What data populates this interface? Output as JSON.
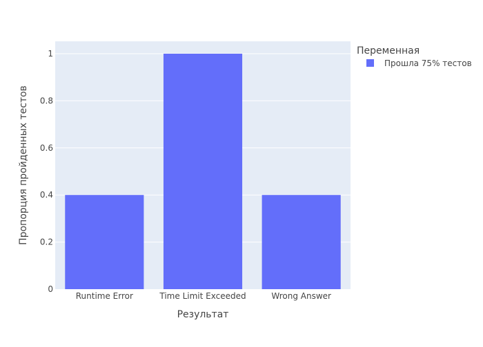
{
  "chart_data": {
    "type": "bar",
    "title": "",
    "xlabel": "Результат",
    "ylabel": "Пропорция пройденных тестов",
    "categories": [
      "Runtime Error",
      "Time Limit Exceeded",
      "Wrong Answer"
    ],
    "series": [
      {
        "name": "Прошла 75% тестов",
        "values": [
          0.4,
          1.0,
          0.4
        ],
        "color": "#636efa"
      }
    ],
    "ylim": [
      0,
      1.0526
    ],
    "yticks": [
      0,
      0.2,
      0.4,
      0.6,
      0.8,
      1
    ],
    "ytick_labels": [
      "0",
      "0.2",
      "0.4",
      "0.6",
      "0.8",
      "1"
    ],
    "grid": true,
    "legend": {
      "title": "Переменная",
      "position": "right"
    },
    "colors": {
      "plot_background": "#e5ecf6",
      "gridline": "#ffffff",
      "text": "#444444"
    }
  }
}
